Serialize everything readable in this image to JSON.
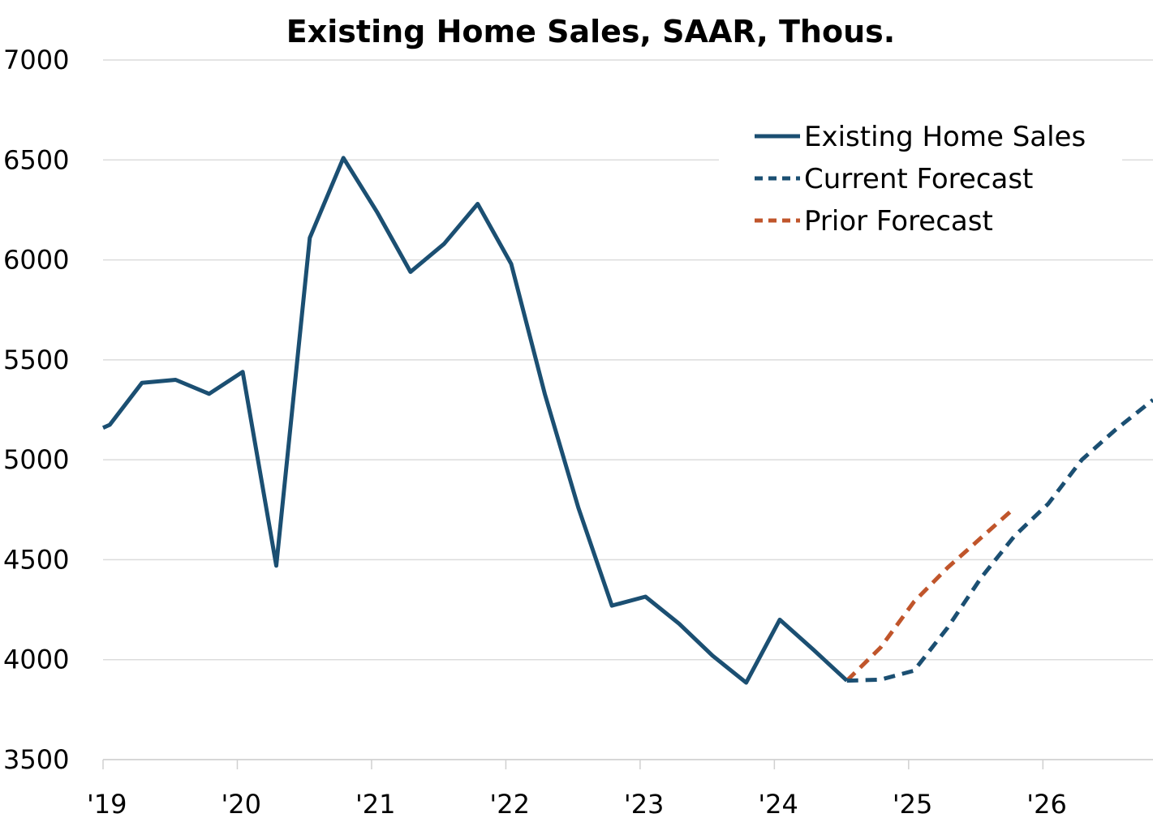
{
  "chart_data": {
    "type": "line",
    "title": "Existing Home Sales, SAAR, Thous.",
    "xlabel": "",
    "ylabel": "",
    "ylim": [
      3500,
      7000
    ],
    "xlim": [
      2019.0,
      2026.82
    ],
    "yticks": [
      "7000",
      "6500",
      "6000",
      "5500",
      "5000",
      "4500",
      "4000",
      "3500"
    ],
    "xticks": [
      {
        "label": "'19",
        "x": 2019.0
      },
      {
        "label": "'20",
        "x": 2020.0
      },
      {
        "label": "'21",
        "x": 2021.0
      },
      {
        "label": "'22",
        "x": 2022.0
      },
      {
        "label": "'23",
        "x": 2023.0
      },
      {
        "label": "'24",
        "x": 2024.0
      },
      {
        "label": "'25",
        "x": 2025.0
      },
      {
        "label": "'26",
        "x": 2026.0
      }
    ],
    "grid": true,
    "legend_position": "top-right",
    "series": [
      {
        "name": "Existing Home Sales",
        "style": "solid",
        "color": "#1b4f72",
        "points": [
          [
            2019.0,
            5160
          ],
          [
            2019.05,
            5175
          ],
          [
            2019.29,
            5385
          ],
          [
            2019.54,
            5400
          ],
          [
            2019.79,
            5330
          ],
          [
            2020.04,
            5440
          ],
          [
            2020.29,
            4470
          ],
          [
            2020.54,
            6110
          ],
          [
            2020.79,
            6510
          ],
          [
            2021.04,
            6240
          ],
          [
            2021.29,
            5940
          ],
          [
            2021.54,
            6080
          ],
          [
            2021.79,
            6280
          ],
          [
            2022.04,
            5980
          ],
          [
            2022.29,
            5330
          ],
          [
            2022.54,
            4760
          ],
          [
            2022.79,
            4270
          ],
          [
            2023.04,
            4315
          ],
          [
            2023.29,
            4180
          ],
          [
            2023.54,
            4020
          ],
          [
            2023.79,
            3885
          ],
          [
            2024.04,
            4200
          ],
          [
            2024.29,
            4050
          ],
          [
            2024.54,
            3895
          ]
        ]
      },
      {
        "name": "Current Forecast",
        "style": "dashed",
        "color": "#1b4f72",
        "points": [
          [
            2024.54,
            3895
          ],
          [
            2024.79,
            3900
          ],
          [
            2025.04,
            3945
          ],
          [
            2025.29,
            4160
          ],
          [
            2025.54,
            4410
          ],
          [
            2025.79,
            4620
          ],
          [
            2026.04,
            4780
          ],
          [
            2026.29,
            5000
          ],
          [
            2026.54,
            5150
          ],
          [
            2026.82,
            5300
          ]
        ]
      },
      {
        "name": "Prior Forecast",
        "style": "dashed",
        "color": "#c0552b",
        "points": [
          [
            2024.54,
            3895
          ],
          [
            2024.79,
            4060
          ],
          [
            2025.04,
            4290
          ],
          [
            2025.29,
            4460
          ],
          [
            2025.54,
            4610
          ],
          [
            2025.79,
            4760
          ]
        ]
      }
    ]
  }
}
